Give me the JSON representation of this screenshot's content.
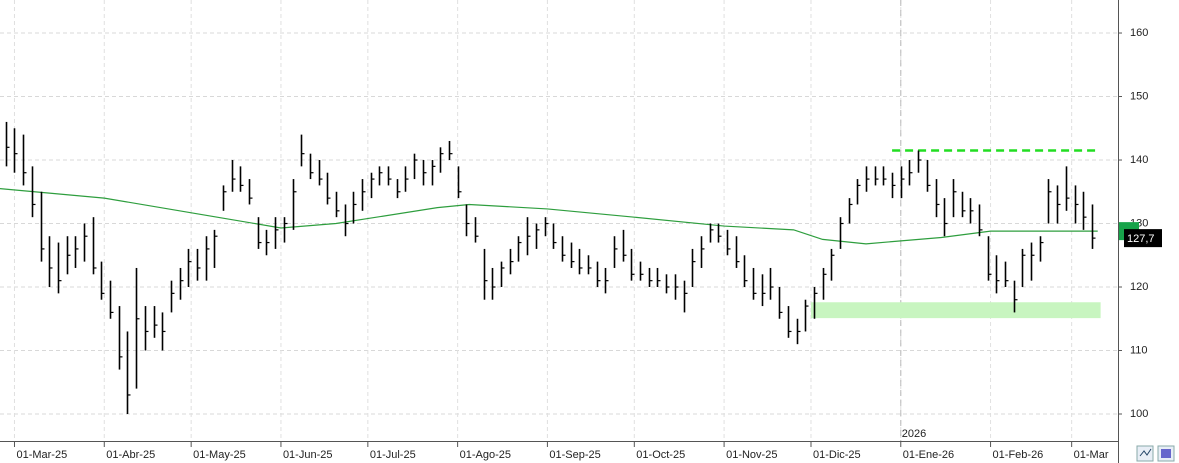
{
  "chart_data": {
    "type": "ohlc",
    "xlim": [
      "2025-02-24",
      "2026-03-17"
    ],
    "xticks": [
      {
        "value": "2025-03-01",
        "label": "01-Mar-25"
      },
      {
        "value": "2025-04-01",
        "label": "01-Abr-25"
      },
      {
        "value": "2025-05-01",
        "label": "01-May-25"
      },
      {
        "value": "2025-06-01",
        "label": "01-Jun-25"
      },
      {
        "value": "2025-07-01",
        "label": "01-Jul-25"
      },
      {
        "value": "2025-08-01",
        "label": "01-Ago-25"
      },
      {
        "value": "2025-09-01",
        "label": "01-Sep-25"
      },
      {
        "value": "2025-10-01",
        "label": "01-Oct-25"
      },
      {
        "value": "2025-11-01",
        "label": "01-Nov-25"
      },
      {
        "value": "2025-12-01",
        "label": "01-Dic-25"
      },
      {
        "value": "2026-01-01",
        "label": "01-Ene-26"
      },
      {
        "value": "2026-02-01",
        "label": "01-Feb-26"
      },
      {
        "value": "2026-03-01",
        "label": "01-Mar"
      }
    ],
    "ylim": [
      95.75,
      165.2
    ],
    "yticks": [
      100,
      110,
      120,
      130,
      140,
      150,
      160
    ],
    "grid": true,
    "x": [
      "2025-02-26",
      "2025-03-01",
      "2025-03-04",
      "2025-03-07",
      "2025-03-10",
      "2025-03-13",
      "2025-03-16",
      "2025-03-19",
      "2025-03-22",
      "2025-03-25",
      "2025-03-28",
      "2025-03-31",
      "2025-04-03",
      "2025-04-06",
      "2025-04-09",
      "2025-04-12",
      "2025-04-15",
      "2025-04-18",
      "2025-04-21",
      "2025-04-24",
      "2025-04-27",
      "2025-04-30",
      "2025-05-03",
      "2025-05-06",
      "2025-05-09",
      "2025-05-12",
      "2025-05-15",
      "2025-05-18",
      "2025-05-21",
      "2025-05-24",
      "2025-05-27",
      "2025-05-30",
      "2025-06-02",
      "2025-06-05",
      "2025-06-08",
      "2025-06-11",
      "2025-06-14",
      "2025-06-17",
      "2025-06-20",
      "2025-06-23",
      "2025-06-26",
      "2025-06-29",
      "2025-07-02",
      "2025-07-05",
      "2025-07-08",
      "2025-07-11",
      "2025-07-14",
      "2025-07-17",
      "2025-07-20",
      "2025-07-23",
      "2025-07-26",
      "2025-07-29",
      "2025-08-01",
      "2025-08-04",
      "2025-08-07",
      "2025-08-10",
      "2025-08-13",
      "2025-08-16",
      "2025-08-19",
      "2025-08-22",
      "2025-08-25",
      "2025-08-28",
      "2025-08-31",
      "2025-09-03",
      "2025-09-06",
      "2025-09-09",
      "2025-09-12",
      "2025-09-15",
      "2025-09-18",
      "2025-09-21",
      "2025-09-24",
      "2025-09-27",
      "2025-09-30",
      "2025-10-03",
      "2025-10-06",
      "2025-10-09",
      "2025-10-12",
      "2025-10-15",
      "2025-10-18",
      "2025-10-21",
      "2025-10-24",
      "2025-10-27",
      "2025-10-30",
      "2025-11-02",
      "2025-11-05",
      "2025-11-08",
      "2025-11-11",
      "2025-11-14",
      "2025-11-17",
      "2025-11-20",
      "2025-11-23",
      "2025-11-26",
      "2025-11-29",
      "2025-12-02",
      "2025-12-05",
      "2025-12-08",
      "2025-12-11",
      "2025-12-14",
      "2025-12-17",
      "2025-12-20",
      "2025-12-23",
      "2025-12-26",
      "2025-12-29",
      "2026-01-01",
      "2026-01-04",
      "2026-01-07",
      "2026-01-10",
      "2026-01-13",
      "2026-01-16",
      "2026-01-19",
      "2026-01-22",
      "2026-01-25",
      "2026-01-28",
      "2026-01-31",
      "2026-02-03",
      "2026-02-06",
      "2026-02-09",
      "2026-02-12",
      "2026-02-15",
      "2026-02-18",
      "2026-02-21",
      "2026-02-24",
      "2026-02-27",
      "2026-03-02",
      "2026-03-05",
      "2026-03-08"
    ],
    "series": [
      {
        "color": "#000000",
        "high": [
          146,
          145,
          144,
          139,
          135,
          128,
          127,
          128,
          128,
          130,
          131,
          124,
          121,
          117,
          113,
          123,
          117,
          117,
          116,
          121,
          123,
          126,
          126,
          128,
          129,
          136,
          140,
          139,
          137,
          131,
          129,
          131,
          131,
          137,
          144,
          141,
          140,
          138,
          135,
          133,
          135,
          137,
          138,
          139,
          139,
          137,
          139,
          141,
          140,
          140,
          142,
          143,
          139,
          133,
          131,
          126,
          123,
          124,
          126,
          128,
          131,
          130,
          131,
          130,
          128,
          127,
          126,
          125,
          124,
          123,
          128,
          129,
          126,
          124,
          123,
          123,
          122,
          122,
          121,
          126,
          128,
          130,
          130,
          129,
          128,
          125,
          123,
          122,
          123,
          120,
          117,
          115,
          118,
          120,
          123,
          126,
          131,
          134,
          137,
          139,
          139,
          139,
          138,
          139,
          140,
          141.5,
          140,
          137,
          134,
          137,
          135,
          134,
          133,
          128,
          125,
          124,
          121,
          126,
          127,
          128,
          137,
          136,
          139,
          136,
          135,
          133
        ],
        "low": [
          139,
          138,
          136,
          131,
          124,
          120,
          119,
          122,
          123,
          124,
          122,
          118,
          115,
          107,
          100,
          104,
          110,
          112,
          110,
          116,
          118,
          120,
          121,
          121,
          123,
          132,
          135,
          135,
          133,
          126,
          125,
          126,
          127,
          129,
          139,
          137,
          136,
          133,
          131,
          128,
          130,
          132,
          134,
          136,
          136,
          134,
          135,
          137,
          136,
          136,
          138,
          140,
          134,
          128,
          127,
          118,
          118,
          120,
          122,
          124,
          125,
          126,
          128,
          126,
          124,
          123,
          122,
          122,
          120,
          119,
          123,
          124,
          121,
          121,
          120,
          120,
          119,
          118,
          116,
          120,
          123,
          127,
          127,
          125,
          123,
          120,
          118,
          117,
          118,
          115,
          112,
          111,
          113,
          115,
          118,
          121,
          126,
          130,
          133,
          135,
          136,
          136,
          134,
          134,
          136,
          138,
          135,
          131,
          128,
          131,
          131,
          130,
          128,
          121,
          119,
          120,
          116,
          120,
          121,
          124,
          130,
          130,
          132,
          130,
          129,
          126
        ],
        "close": [
          142,
          141,
          138,
          133,
          126,
          123,
          121,
          125,
          126,
          128,
          123,
          119,
          116,
          109,
          103,
          115,
          113,
          114,
          113,
          119,
          121,
          124,
          123,
          126,
          128,
          135,
          137,
          136,
          134,
          127,
          127,
          129,
          130,
          135,
          141,
          138,
          137,
          134,
          132,
          130,
          133,
          135,
          137,
          138,
          137,
          135,
          137,
          140,
          138,
          139,
          141,
          141,
          135,
          130,
          128,
          121,
          120,
          123,
          124,
          127,
          128,
          129,
          130,
          127,
          125,
          124,
          123,
          123,
          121,
          121,
          126,
          125,
          122,
          122,
          121,
          121,
          120,
          120,
          119,
          124,
          126,
          129,
          128,
          126,
          124,
          121,
          119,
          119,
          120,
          116,
          113,
          113,
          117,
          119,
          122,
          125,
          130,
          133,
          136,
          137,
          137,
          137,
          136,
          137,
          138,
          140,
          136,
          133,
          130,
          135,
          132,
          132,
          129,
          122,
          121,
          121,
          118,
          125,
          125,
          127,
          135,
          133,
          134,
          133,
          131,
          127.7
        ]
      }
    ],
    "moving_average": {
      "color": "#2e9e3e",
      "x": [
        "2025-02-24",
        "2025-04-01",
        "2025-05-10",
        "2025-06-01",
        "2025-06-20",
        "2025-07-25",
        "2025-08-05",
        "2025-09-01",
        "2025-10-01",
        "2025-11-01",
        "2025-11-25",
        "2025-12-05",
        "2025-12-20",
        "2026-01-15",
        "2026-02-01",
        "2026-03-10"
      ],
      "values": [
        135.5,
        134,
        131,
        129.3,
        130,
        132.5,
        133,
        132.3,
        131,
        129.6,
        129,
        127.5,
        126.8,
        127.8,
        128.8,
        128.8
      ]
    },
    "last_price": {
      "value": 127.7,
      "label": "127,7"
    },
    "year_marker": {
      "x": "2026-01-01",
      "label": "2026"
    },
    "resistance": {
      "color": "#22dd22",
      "value": 141.5,
      "x": [
        "2025-12-29",
        "2026-03-10"
      ]
    },
    "support_zone": {
      "color": "#c8f5c0",
      "values": [
        115.1,
        117.6
      ],
      "x": [
        "2025-12-01",
        "2026-03-11"
      ]
    }
  }
}
